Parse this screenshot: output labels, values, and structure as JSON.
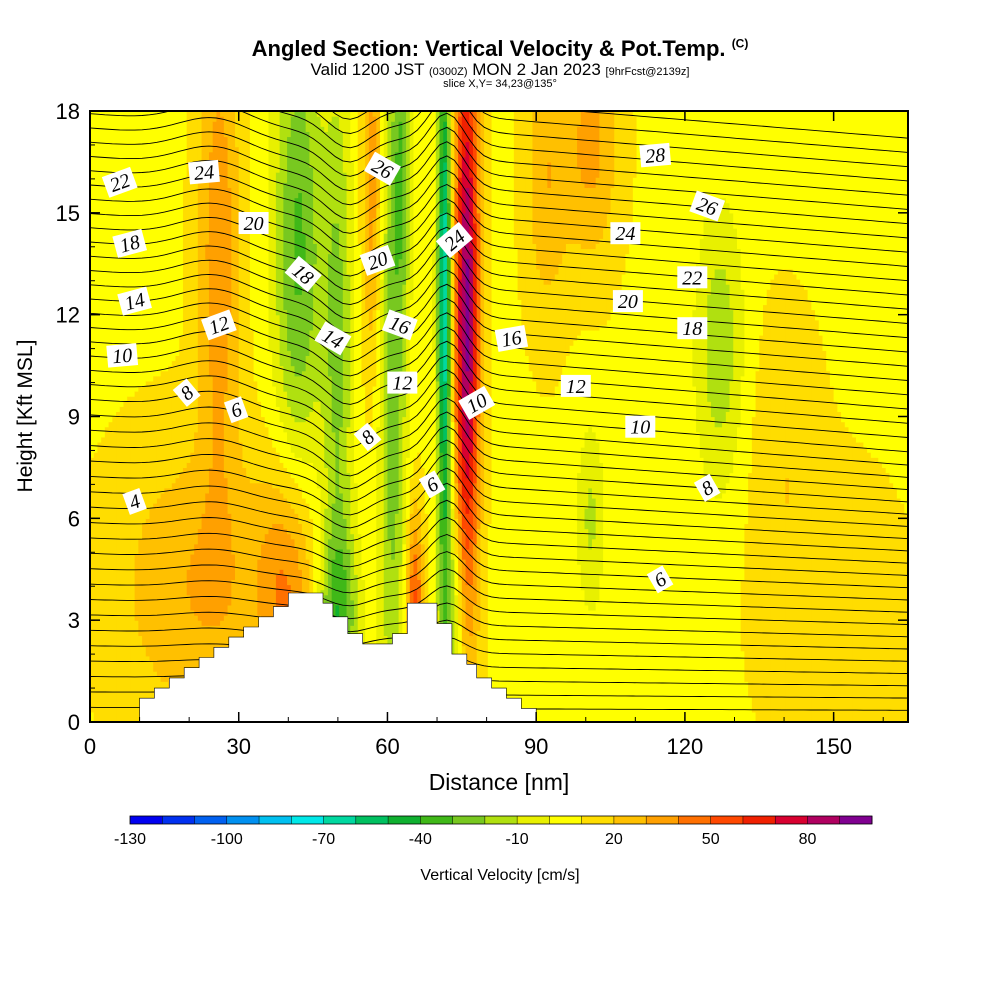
{
  "chart_data": {
    "type": "heatmap",
    "title": "Angled Section: Vertical Velocity & Pot.Temp.",
    "title_mark": "(C)",
    "subtitle": {
      "valid": "Valid 1200 JST",
      "utc": "(0300Z)",
      "date": "MON 2 Jan 2023",
      "fcst": "[9hrFcst@2139z]"
    },
    "slice_text": "slice X,Y= 34,23@135°",
    "xlabel": "Distance [nm]",
    "ylabel": "Height [Kft MSL]",
    "xlim": [
      0,
      165
    ],
    "ylim": [
      0,
      18
    ],
    "xticks": [
      0,
      30,
      60,
      90,
      120,
      150
    ],
    "yticks": [
      0,
      3,
      6,
      9,
      12,
      15,
      18
    ],
    "grid": false,
    "colorbar": {
      "label": "Vertical Velocity [cm/s]",
      "tick_labels": [
        -130,
        -100,
        -70,
        -40,
        -10,
        20,
        50,
        80
      ],
      "levels": [
        -130,
        -120,
        -110,
        -100,
        -90,
        -80,
        -70,
        -60,
        -50,
        -40,
        -30,
        -20,
        -10,
        0,
        10,
        20,
        30,
        40,
        50,
        60,
        70,
        80,
        90
      ],
      "colors": [
        "#0000f0",
        "#0030f0",
        "#0060f0",
        "#0090f0",
        "#00c0f0",
        "#00e8e8",
        "#00d8a0",
        "#00c060",
        "#10b030",
        "#40b818",
        "#78c820",
        "#b0e010",
        "#e8f000",
        "#ffff00",
        "#ffdd00",
        "#ffc000",
        "#ffa000",
        "#ff7000",
        "#ff4800",
        "#f02000",
        "#d80030",
        "#b00060",
        "#800090"
      ]
    },
    "contours": {
      "name": "Potential temperature",
      "labels": [
        {
          "text": "22",
          "x": 6,
          "h": 15.9,
          "rot": -20
        },
        {
          "text": "24",
          "x": 23,
          "h": 16.2,
          "rot": -5
        },
        {
          "text": "20",
          "x": 33,
          "h": 14.7,
          "rot": 0
        },
        {
          "text": "18",
          "x": 8,
          "h": 14.1,
          "rot": -15
        },
        {
          "text": "14",
          "x": 9,
          "h": 12.4,
          "rot": -15
        },
        {
          "text": "12",
          "x": 26,
          "h": 11.7,
          "rot": -20
        },
        {
          "text": "10",
          "x": 6.5,
          "h": 10.8,
          "rot": -5
        },
        {
          "text": "8",
          "x": 19.5,
          "h": 9.7,
          "rot": -40
        },
        {
          "text": "6",
          "x": 29.5,
          "h": 9.2,
          "rot": -20
        },
        {
          "text": "4",
          "x": 9,
          "h": 6.5,
          "rot": -20
        },
        {
          "text": "18",
          "x": 43,
          "h": 13.2,
          "rot": 40
        },
        {
          "text": "14",
          "x": 49,
          "h": 11.3,
          "rot": 30
        },
        {
          "text": "26",
          "x": 59,
          "h": 16.3,
          "rot": 30
        },
        {
          "text": "20",
          "x": 58,
          "h": 13.6,
          "rot": -20
        },
        {
          "text": "16",
          "x": 62.5,
          "h": 11.7,
          "rot": 20
        },
        {
          "text": "12",
          "x": 63,
          "h": 10.0,
          "rot": 0
        },
        {
          "text": "8",
          "x": 56,
          "h": 8.4,
          "rot": -40
        },
        {
          "text": "24",
          "x": 73.5,
          "h": 14.2,
          "rot": -40
        },
        {
          "text": "10",
          "x": 78,
          "h": 9.4,
          "rot": -30
        },
        {
          "text": "6",
          "x": 69,
          "h": 7.0,
          "rot": -30
        },
        {
          "text": "16",
          "x": 85,
          "h": 11.3,
          "rot": -10
        },
        {
          "text": "12",
          "x": 98,
          "h": 9.9,
          "rot": 0
        },
        {
          "text": "10",
          "x": 111,
          "h": 8.7,
          "rot": 0
        },
        {
          "text": "28",
          "x": 114,
          "h": 16.7,
          "rot": -5
        },
        {
          "text": "26",
          "x": 124.5,
          "h": 15.2,
          "rot": 20
        },
        {
          "text": "24",
          "x": 108,
          "h": 14.4,
          "rot": 0
        },
        {
          "text": "22",
          "x": 121.5,
          "h": 13.1,
          "rot": 0
        },
        {
          "text": "20",
          "x": 108.5,
          "h": 12.4,
          "rot": 0
        },
        {
          "text": "18",
          "x": 121.5,
          "h": 11.6,
          "rot": 0
        },
        {
          "text": "8",
          "x": 124.5,
          "h": 6.9,
          "rot": -30
        },
        {
          "text": "6",
          "x": 115,
          "h": 4.2,
          "rot": -30
        }
      ]
    }
  }
}
